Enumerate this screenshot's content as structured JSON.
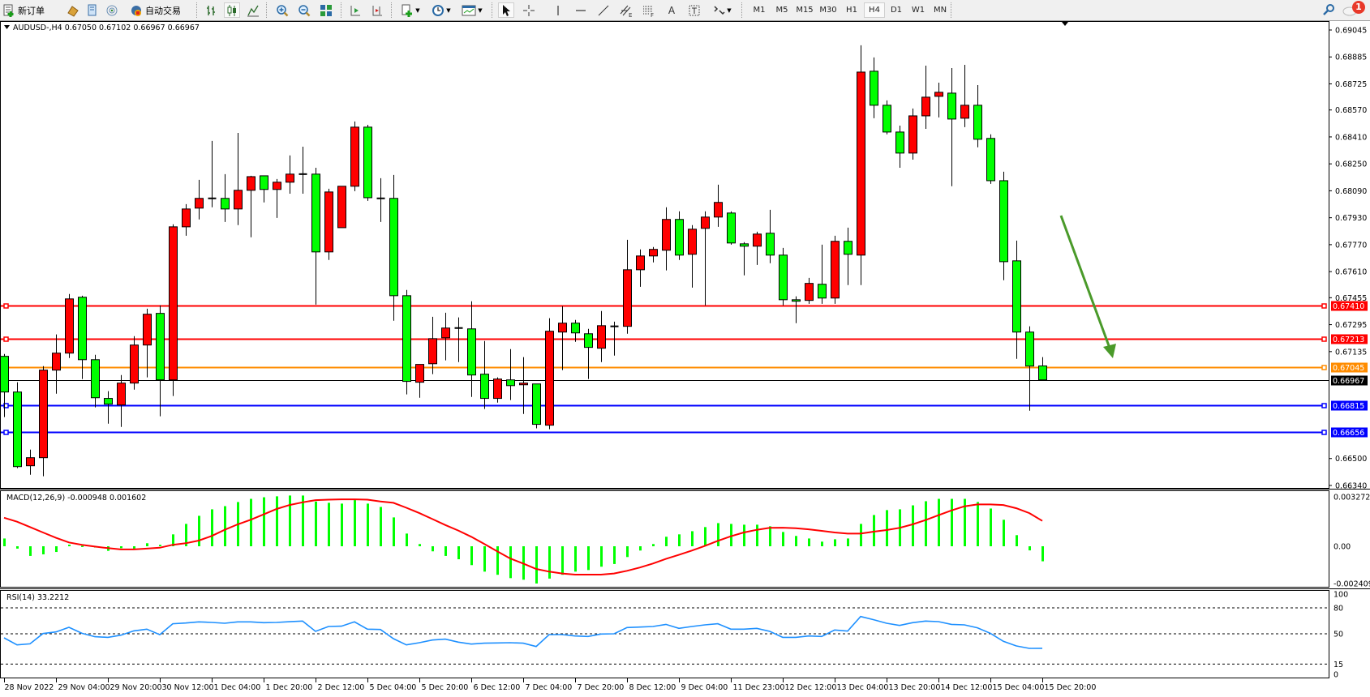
{
  "toolbar": {
    "new_order": "新订单",
    "auto_trading": "自动交易",
    "timeframes": [
      "M1",
      "M5",
      "M15",
      "M30",
      "H1",
      "H4",
      "D1",
      "W1",
      "MN"
    ],
    "active_timeframe": "H4",
    "line_tools": {
      "text_label": "A"
    }
  },
  "notifications": {
    "count": "1"
  },
  "chart_data": [
    {
      "type": "candlestick",
      "title": "AUDUSD-,H4  0.67050 0.67102 0.66967 0.66967",
      "ylim": [
        0.6634,
        0.69045
      ],
      "y_tick_labels": [
        "0.69045",
        "0.68885",
        "0.68725",
        "0.68570",
        "0.68410",
        "0.68250",
        "0.68090",
        "0.67930",
        "0.67770",
        "0.67610",
        "0.67455",
        "0.67295",
        "0.67135",
        "0.66500",
        "0.66340"
      ],
      "x_tick_labels": [
        "28 Nov 2022",
        "29 Nov 04:00",
        "29 Nov 20:00",
        "30 Nov 12:00",
        "1 Dec 04:00",
        "1 Dec 20:00",
        "2 Dec 12:00",
        "5 Dec 04:00",
        "5 Dec 20:00",
        "6 Dec 12:00",
        "7 Dec 04:00",
        "7 Dec 20:00",
        "8 Dec 12:00",
        "9 Dec 04:00",
        "11 Dec 23:00",
        "12 Dec 12:00",
        "13 Dec 04:00",
        "13 Dec 20:00",
        "14 Dec 12:00",
        "15 Dec 04:00",
        "15 Dec 20:00"
      ],
      "colors": {
        "bull": "#ff0000",
        "bear": "#00ff00",
        "outline": "#000000",
        "arrow": "#4a9a2a"
      },
      "ohlc": [
        [
          0.67107,
          0.67121,
          0.66746,
          0.66895
        ],
        [
          0.66895,
          0.66953,
          0.66443,
          0.66452
        ],
        [
          0.66457,
          0.66553,
          0.66404,
          0.66505
        ],
        [
          0.66505,
          0.67049,
          0.66395,
          0.67025
        ],
        [
          0.67025,
          0.67237,
          0.66885,
          0.67126
        ],
        [
          0.67126,
          0.67477,
          0.67097,
          0.67448
        ],
        [
          0.67458,
          0.67467,
          0.66972,
          0.67087
        ],
        [
          0.67087,
          0.67116,
          0.66804,
          0.66861
        ],
        [
          0.66857,
          0.669,
          0.66707,
          0.66823
        ],
        [
          0.66818,
          0.66996,
          0.66688,
          0.66948
        ],
        [
          0.66948,
          0.67227,
          0.66909,
          0.67174
        ],
        [
          0.67174,
          0.6739,
          0.66982,
          0.67357
        ],
        [
          0.67362,
          0.6741,
          0.66751,
          0.66967
        ],
        [
          0.66967,
          0.67891,
          0.66871,
          0.67876
        ],
        [
          0.67876,
          0.68011,
          0.67823,
          0.67982
        ],
        [
          0.67987,
          0.68155,
          0.6792,
          0.68045
        ],
        [
          0.6804,
          0.68386,
          0.67992,
          0.68045
        ],
        [
          0.68045,
          0.68189,
          0.67905,
          0.67982
        ],
        [
          0.67982,
          0.68434,
          0.67886,
          0.68093
        ],
        [
          0.68093,
          0.68179,
          0.67814,
          0.68174
        ],
        [
          0.68179,
          0.68179,
          0.68021,
          0.68098
        ],
        [
          0.68098,
          0.6816,
          0.67929,
          0.68141
        ],
        [
          0.68141,
          0.683,
          0.68073,
          0.68189
        ],
        [
          0.68189,
          0.68352,
          0.68073,
          0.68189
        ],
        [
          0.68189,
          0.68227,
          0.67414,
          0.67727
        ],
        [
          0.67727,
          0.68102,
          0.67679,
          0.68083
        ],
        [
          0.67871,
          0.68117,
          0.67871,
          0.68117
        ],
        [
          0.68117,
          0.68502,
          0.68088,
          0.68468
        ],
        [
          0.68468,
          0.68482,
          0.6803,
          0.68049
        ],
        [
          0.68045,
          0.68165,
          0.67905,
          0.68045
        ],
        [
          0.68045,
          0.68184,
          0.67318,
          0.67467
        ],
        [
          0.67467,
          0.67501,
          0.66881,
          0.66958
        ],
        [
          0.66953,
          0.67059,
          0.66861,
          0.67059
        ],
        [
          0.67063,
          0.67342,
          0.67001,
          0.67212
        ],
        [
          0.67217,
          0.67366,
          0.67083,
          0.67275
        ],
        [
          0.67275,
          0.67338,
          0.67073,
          0.67275
        ],
        [
          0.6727,
          0.67434,
          0.66866,
          0.66996
        ],
        [
          0.67001,
          0.67198,
          0.66794,
          0.66857
        ],
        [
          0.66857,
          0.66982,
          0.66832,
          0.66972
        ],
        [
          0.66967,
          0.6715,
          0.66847,
          0.66933
        ],
        [
          0.66938,
          0.67102,
          0.66765,
          0.66948
        ],
        [
          0.66943,
          0.66943,
          0.66679,
          0.66703
        ],
        [
          0.66698,
          0.67333,
          0.66674,
          0.67256
        ],
        [
          0.67251,
          0.67405,
          0.67025,
          0.67304
        ],
        [
          0.67304,
          0.67323,
          0.67193,
          0.67246
        ],
        [
          0.67241,
          0.6727,
          0.66972,
          0.6716
        ],
        [
          0.67155,
          0.67376,
          0.67073,
          0.67289
        ],
        [
          0.67285,
          0.67313,
          0.67111,
          0.67285
        ],
        [
          0.67285,
          0.67799,
          0.67241,
          0.67621
        ],
        [
          0.67621,
          0.67742,
          0.6752,
          0.67703
        ],
        [
          0.67703,
          0.67756,
          0.67665,
          0.67742
        ],
        [
          0.67737,
          0.67992,
          0.67617,
          0.6792
        ],
        [
          0.6792,
          0.67968,
          0.67679,
          0.67708
        ],
        [
          0.67713,
          0.67886,
          0.67515,
          0.67862
        ],
        [
          0.67867,
          0.67968,
          0.6741,
          0.67934
        ],
        [
          0.67934,
          0.68126,
          0.67876,
          0.68021
        ],
        [
          0.67958,
          0.67968,
          0.6777,
          0.6778
        ],
        [
          0.67775,
          0.67785,
          0.67588,
          0.67761
        ],
        [
          0.67761,
          0.67847,
          0.6765,
          0.67833
        ],
        [
          0.67838,
          0.67977,
          0.6766,
          0.67708
        ],
        [
          0.67708,
          0.67751,
          0.6741,
          0.67443
        ],
        [
          0.67443,
          0.67463,
          0.67304,
          0.67434
        ],
        [
          0.67439,
          0.67573,
          0.67419,
          0.6754
        ],
        [
          0.67535,
          0.6777,
          0.67419,
          0.67453
        ],
        [
          0.67453,
          0.67823,
          0.67419,
          0.6779
        ],
        [
          0.6779,
          0.67871,
          0.6753,
          0.67713
        ],
        [
          0.67708,
          0.68954,
          0.6753,
          0.68795
        ],
        [
          0.688,
          0.68882,
          0.68521,
          0.68598
        ],
        [
          0.68598,
          0.68627,
          0.68425,
          0.68439
        ],
        [
          0.68439,
          0.68477,
          0.68227,
          0.68314
        ],
        [
          0.68314,
          0.68579,
          0.68275,
          0.68535
        ],
        [
          0.68535,
          0.68833,
          0.68458,
          0.68646
        ],
        [
          0.68651,
          0.68732,
          0.68526,
          0.68675
        ],
        [
          0.6867,
          0.68819,
          0.68117,
          0.68516
        ],
        [
          0.68521,
          0.68838,
          0.68468,
          0.68598
        ],
        [
          0.68598,
          0.68718,
          0.68348,
          0.68396
        ],
        [
          0.68401,
          0.68425,
          0.68131,
          0.6815
        ],
        [
          0.6815,
          0.68203,
          0.67559,
          0.67669
        ],
        [
          0.67674,
          0.67794,
          0.67092,
          0.67251
        ],
        [
          0.67251,
          0.67285,
          0.66784,
          0.67049
        ],
        [
          0.6705,
          0.67102,
          0.66967,
          0.66967
        ]
      ],
      "levels": [
        {
          "price": 0.6741,
          "label": "0.67410",
          "color": "#ff0000"
        },
        {
          "price": 0.67213,
          "label": "0.67213",
          "color": "#ff0000"
        },
        {
          "price": 0.67045,
          "label": "0.67045",
          "color": "#ff8c00"
        },
        {
          "price": 0.66815,
          "label": "0.66815",
          "color": "#0000ff"
        },
        {
          "price": 0.66656,
          "label": "0.66656",
          "color": "#0000ff"
        }
      ],
      "bid": {
        "price": 0.66967,
        "label": "0.66967",
        "color": "#000000"
      }
    },
    {
      "type": "bar",
      "title": "MACD(12,26,9) -0.000948 0.001602",
      "ylim": [
        -0.002409,
        0.003272
      ],
      "y_tick_labels": [
        "0.003272",
        "0.00",
        "-0.002409"
      ],
      "colors": {
        "histogram": "#00ff00",
        "signal": "#ff0000"
      },
      "histogram": [
        0.00049,
        -0.00015,
        -0.00061,
        -0.00051,
        -0.00036,
        0.0001,
        3e-05,
        -8e-05,
        -0.00029,
        -0.00012,
        -0.00015,
        0.00019,
        9e-05,
        0.00075,
        0.00141,
        0.00192,
        0.00233,
        0.00253,
        0.00279,
        0.00299,
        0.00309,
        0.00315,
        0.0032,
        0.0032,
        0.00282,
        0.00274,
        0.00269,
        0.00291,
        0.00269,
        0.00248,
        0.00182,
        0.0008,
        0.00014,
        -0.00032,
        -0.00061,
        -0.00082,
        -0.00119,
        -0.0016,
        -0.0018,
        -0.00201,
        -0.00211,
        -0.00235,
        -0.00204,
        -0.0018,
        -0.0016,
        -0.0015,
        -0.00129,
        -0.00112,
        -0.00068,
        -0.00027,
        0.00014,
        0.0006,
        0.00075,
        0.00095,
        0.00121,
        0.00146,
        0.00141,
        0.00136,
        0.00136,
        0.00126,
        0.0009,
        0.00065,
        0.00049,
        0.00029,
        0.00044,
        0.00049,
        0.00141,
        0.00197,
        0.00228,
        0.00233,
        0.00258,
        0.00284,
        0.00299,
        0.00299,
        0.00299,
        0.00279,
        0.00238,
        0.00167,
        0.0007,
        -0.00026,
        -0.000948
      ],
      "signal": [
        0.0018,
        0.00155,
        0.00121,
        0.00087,
        0.00053,
        0.00024,
        9e-05,
        -2e-05,
        -0.00012,
        -0.0002,
        -0.0002,
        -0.00015,
        -9e-05,
        9e-05,
        0.00019,
        0.00036,
        0.00065,
        0.00104,
        0.00138,
        0.00167,
        0.00201,
        0.00235,
        0.0026,
        0.00277,
        0.00291,
        0.00294,
        0.00296,
        0.00296,
        0.00294,
        0.00282,
        0.00274,
        0.00243,
        0.00209,
        0.00172,
        0.00134,
        0.00099,
        0.0006,
        0.00015,
        -0.00032,
        -0.00077,
        -0.00109,
        -0.00143,
        -0.0016,
        -0.00172,
        -0.00179,
        -0.00179,
        -0.00179,
        -0.00172,
        -0.00155,
        -0.00134,
        -0.00109,
        -0.0008,
        -0.00054,
        -0.00027,
        2e-05,
        0.00034,
        0.00063,
        0.00087,
        0.00104,
        0.00116,
        0.00117,
        0.00114,
        0.00107,
        0.00097,
        0.00087,
        0.0008,
        0.0008,
        0.00092,
        0.00102,
        0.00116,
        0.00138,
        0.00165,
        0.00196,
        0.00226,
        0.00252,
        0.00264,
        0.00264,
        0.0026,
        0.0024,
        0.00209,
        0.001602
      ]
    },
    {
      "type": "line",
      "title": "RSI(14) 33.2212",
      "ylim": [
        0,
        100
      ],
      "y_tick_labels": [
        "100",
        "80",
        "50",
        "15",
        "0"
      ],
      "levels": [
        80,
        50,
        15
      ],
      "colors": {
        "line": "#1e90ff"
      },
      "values": [
        45.3,
        37.2,
        38.4,
        50.3,
        52.2,
        57.5,
        50.6,
        46.6,
        45.9,
        48.4,
        53.4,
        55.3,
        49,
        61.6,
        62.5,
        63.8,
        63.1,
        62.2,
        63.8,
        63.8,
        62.8,
        63.1,
        64,
        64.7,
        52.8,
        58.4,
        58.8,
        63.8,
        55.3,
        55,
        44.4,
        37.2,
        39.7,
        42.8,
        43.8,
        40.3,
        38.1,
        39.1,
        39.4,
        39.7,
        39.1,
        35.3,
        49.1,
        49.1,
        47.5,
        46.9,
        49.7,
        50,
        57.2,
        57.8,
        58.4,
        60.9,
        56.3,
        58.4,
        60.3,
        61.6,
        55.3,
        55.3,
        56.3,
        52.8,
        45.9,
        45.9,
        47.5,
        46.9,
        54.4,
        53.1,
        70,
        66.3,
        62.2,
        59.7,
        62.8,
        64.7,
        64.1,
        60.9,
        60.3,
        56.9,
        50.6,
        41.3,
        35.9,
        33.1,
        33.2212
      ]
    }
  ]
}
